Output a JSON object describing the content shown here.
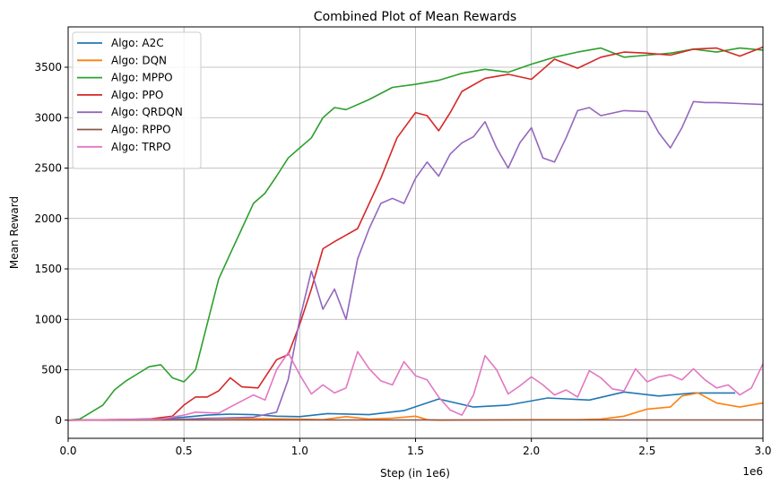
{
  "chart_data": {
    "type": "line",
    "title": "Combined Plot of Mean Rewards",
    "xlabel": "Step (in 1e6)",
    "ylabel": "Mean Reward",
    "x_offset_label": "1e6",
    "xlim": [
      0,
      3.0
    ],
    "ylim": [
      -180,
      3900
    ],
    "x_ticks": [
      0.0,
      0.5,
      1.0,
      1.5,
      2.0,
      2.5,
      3.0
    ],
    "x_tick_labels": [
      "0.0",
      "0.5",
      "1.0",
      "1.5",
      "2.0",
      "2.5",
      "3.0"
    ],
    "y_ticks": [
      0,
      500,
      1000,
      1500,
      2000,
      2500,
      3000,
      3500
    ],
    "y_tick_labels": [
      "0",
      "500",
      "1000",
      "1500",
      "2000",
      "2500",
      "3000",
      "3500"
    ],
    "grid": true,
    "legend_position": "top-left",
    "series": [
      {
        "name": "Algo: A2C",
        "color": "#1f77b4",
        "x": [
          0,
          0.2,
          0.4,
          0.5,
          0.6,
          0.7,
          0.8,
          0.9,
          1.0,
          1.12,
          1.3,
          1.45,
          1.6,
          1.75,
          1.9,
          2.07,
          2.25,
          2.4,
          2.55,
          2.7,
          2.88
        ],
        "y": [
          0,
          5,
          15,
          30,
          50,
          60,
          55,
          40,
          35,
          65,
          55,
          95,
          210,
          130,
          150,
          220,
          200,
          280,
          240,
          270,
          270
        ]
      },
      {
        "name": "Algo: DQN",
        "color": "#ff7f0e",
        "x": [
          0,
          0.5,
          0.6,
          0.8,
          1.0,
          1.1,
          1.2,
          1.3,
          1.4,
          1.5,
          1.55,
          1.6,
          2.0,
          2.2,
          2.3,
          2.4,
          2.5,
          2.6,
          2.65,
          2.72,
          2.8,
          2.9,
          3.0
        ],
        "y": [
          0,
          5,
          20,
          15,
          10,
          5,
          35,
          10,
          20,
          40,
          5,
          0,
          5,
          5,
          10,
          40,
          110,
          130,
          240,
          270,
          170,
          130,
          170
        ]
      },
      {
        "name": "Algo: MPPO",
        "color": "#2ca02c",
        "x": [
          0,
          0.05,
          0.1,
          0.15,
          0.2,
          0.25,
          0.3,
          0.35,
          0.4,
          0.45,
          0.5,
          0.55,
          0.6,
          0.65,
          0.7,
          0.75,
          0.8,
          0.85,
          0.9,
          0.95,
          1.0,
          1.05,
          1.1,
          1.15,
          1.2,
          1.3,
          1.4,
          1.5,
          1.6,
          1.7,
          1.8,
          1.9,
          2.0,
          2.1,
          2.2,
          2.3,
          2.4,
          2.5,
          2.6,
          2.7,
          2.8,
          2.9,
          3.0
        ],
        "y": [
          0,
          10,
          80,
          150,
          300,
          390,
          460,
          530,
          550,
          420,
          380,
          500,
          950,
          1400,
          1650,
          1900,
          2150,
          2250,
          2420,
          2600,
          2700,
          2800,
          3000,
          3100,
          3080,
          3180,
          3300,
          3330,
          3370,
          3440,
          3480,
          3450,
          3530,
          3600,
          3650,
          3690,
          3600,
          3620,
          3640,
          3680,
          3650,
          3690,
          3670
        ]
      },
      {
        "name": "Algo: PPO",
        "color": "#d62728",
        "x": [
          0,
          0.35,
          0.45,
          0.5,
          0.55,
          0.6,
          0.65,
          0.7,
          0.75,
          0.82,
          0.9,
          0.95,
          1.0,
          1.05,
          1.1,
          1.15,
          1.25,
          1.35,
          1.42,
          1.5,
          1.55,
          1.6,
          1.65,
          1.7,
          1.8,
          1.9,
          2.0,
          2.05,
          2.1,
          2.2,
          2.3,
          2.4,
          2.5,
          2.6,
          2.7,
          2.8,
          2.9,
          3.0
        ],
        "y": [
          0,
          10,
          40,
          150,
          230,
          230,
          290,
          420,
          330,
          320,
          600,
          650,
          950,
          1300,
          1700,
          1770,
          1900,
          2400,
          2800,
          3050,
          3020,
          2870,
          3050,
          3260,
          3390,
          3430,
          3380,
          3480,
          3580,
          3490,
          3600,
          3650,
          3640,
          3620,
          3680,
          3690,
          3610,
          3700
        ]
      },
      {
        "name": "Algo: QRDQN",
        "color": "#9467bd",
        "x": [
          0,
          0.5,
          0.8,
          0.9,
          0.95,
          1.0,
          1.05,
          1.1,
          1.15,
          1.2,
          1.25,
          1.3,
          1.35,
          1.4,
          1.45,
          1.5,
          1.55,
          1.6,
          1.65,
          1.7,
          1.75,
          1.8,
          1.85,
          1.9,
          1.95,
          2.0,
          2.05,
          2.1,
          2.15,
          2.2,
          2.25,
          2.3,
          2.4,
          2.5,
          2.55,
          2.6,
          2.65,
          2.7,
          2.75,
          2.8,
          2.9,
          3.0
        ],
        "y": [
          0,
          10,
          30,
          80,
          400,
          1000,
          1480,
          1100,
          1300,
          1000,
          1600,
          1900,
          2150,
          2200,
          2150,
          2400,
          2560,
          2420,
          2640,
          2750,
          2810,
          2960,
          2700,
          2500,
          2750,
          2900,
          2600,
          2560,
          2800,
          3070,
          3100,
          3020,
          3070,
          3060,
          2850,
          2700,
          2900,
          3160,
          3150,
          3150,
          3140,
          3130
        ]
      },
      {
        "name": "Algo: RPPO",
        "color": "#8c564b",
        "x": [
          0,
          0.5,
          1.0,
          1.5,
          2.0,
          2.5,
          3.0
        ],
        "y": [
          0,
          2,
          2,
          2,
          2,
          2,
          2
        ]
      },
      {
        "name": "Algo: TRPO",
        "color": "#e377c2",
        "x": [
          0,
          0.2,
          0.4,
          0.5,
          0.55,
          0.65,
          0.7,
          0.8,
          0.85,
          0.9,
          0.95,
          1.0,
          1.05,
          1.1,
          1.15,
          1.2,
          1.25,
          1.3,
          1.35,
          1.4,
          1.45,
          1.5,
          1.55,
          1.6,
          1.65,
          1.7,
          1.75,
          1.8,
          1.85,
          1.9,
          1.95,
          2.0,
          2.05,
          2.1,
          2.15,
          2.2,
          2.25,
          2.3,
          2.35,
          2.4,
          2.45,
          2.5,
          2.55,
          2.6,
          2.65,
          2.7,
          2.75,
          2.8,
          2.85,
          2.9,
          2.95,
          3.0
        ],
        "y": [
          0,
          5,
          10,
          50,
          80,
          70,
          130,
          250,
          200,
          500,
          670,
          450,
          260,
          350,
          270,
          320,
          680,
          510,
          390,
          350,
          580,
          440,
          400,
          230,
          100,
          50,
          250,
          640,
          500,
          260,
          340,
          430,
          350,
          250,
          300,
          230,
          490,
          420,
          310,
          290,
          510,
          380,
          430,
          450,
          400,
          510,
          400,
          320,
          350,
          250,
          320,
          560
        ]
      }
    ]
  }
}
